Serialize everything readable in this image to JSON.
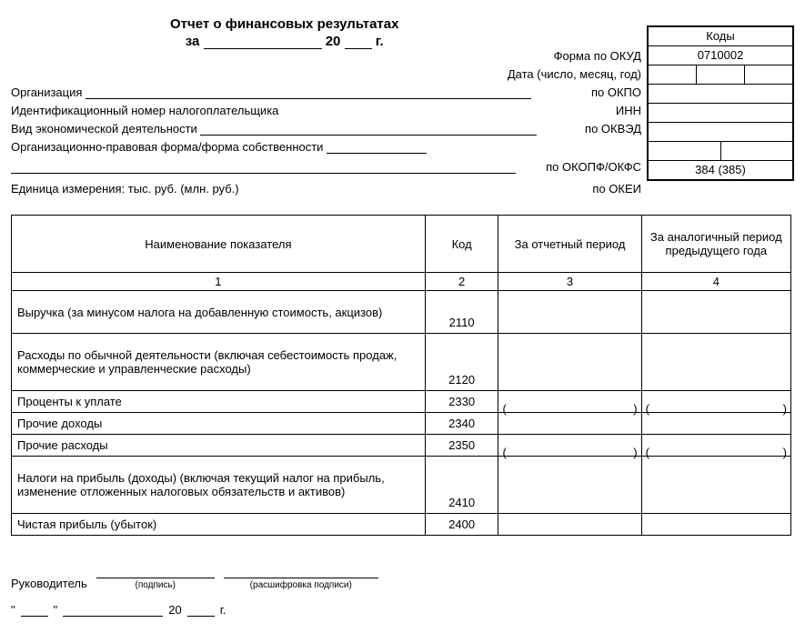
{
  "title": {
    "line1": "Отчет о финансовых результатах",
    "za": "за",
    "twenty": "20",
    "g": "г."
  },
  "codes_box": {
    "header": "Коды",
    "okud": "0710002",
    "okei": "384 (385)"
  },
  "right_labels": {
    "okud": "Форма по ОКУД",
    "date": "Дата (число, месяц, год)",
    "okpo": "по ОКПО",
    "inn": "ИНН",
    "okved": "по ОКВЭД",
    "okopf": "по ОКОПФ/ОКФС",
    "okei": "по ОКЕИ"
  },
  "left_labels": {
    "org": "Организация",
    "inn": "Идентификационный номер налогоплательщика",
    "activity": "Вид экономической деятельности",
    "form": "Организационно-правовая форма/форма собственности",
    "unit": "Единица измерения: тыс. руб. (млн. руб.)"
  },
  "table": {
    "headers": {
      "name": "Наименование показателя",
      "code": "Код",
      "period": "За отчетный период",
      "prev": "За аналогичный период предыдущего года"
    },
    "numrow": {
      "c1": "1",
      "c2": "2",
      "c3": "3",
      "c4": "4"
    },
    "rows": [
      {
        "name": "Выручка (за минусом налога на добавленную стоимость, акцизов)",
        "code": "2110",
        "paren": false,
        "tall": true
      },
      {
        "name": "Расходы по обычной деятельности (включая себестоимость продаж, коммерческие и управленческие расходы)",
        "code": "2120",
        "paren": false,
        "xtall": true
      },
      {
        "name": "Проценты к уплате",
        "code": "2330",
        "paren": true
      },
      {
        "name": "Прочие доходы",
        "code": "2340",
        "paren": false
      },
      {
        "name": "Прочие расходы",
        "code": "2350",
        "paren": true
      },
      {
        "name": "Налоги на прибыль (доходы) (включая текущий налог на прибыль, изменение отложенных налоговых обязательств и активов)",
        "code": "2410",
        "paren": false,
        "xtall": true
      },
      {
        "name": "Чистая прибыль (убыток)",
        "code": "2400",
        "paren": false
      }
    ]
  },
  "sign": {
    "leader": "Руководитель",
    "sig": "(подпись)",
    "decode": "(расшифровка подписи)",
    "q": "\"",
    "twenty": "20",
    "g": "г."
  }
}
